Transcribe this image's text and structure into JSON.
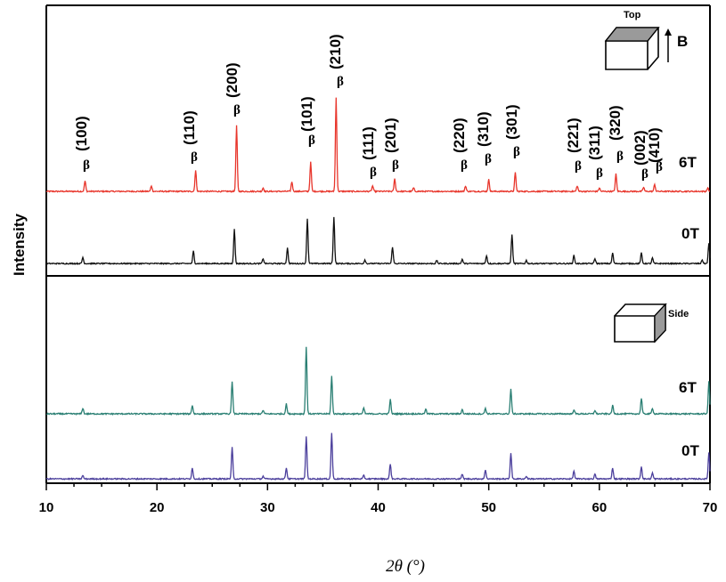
{
  "chart_data": {
    "type": "line",
    "xlabel": "2θ (°)",
    "ylabel": "Intensity",
    "xlim": [
      10,
      70
    ],
    "xticks": [
      10,
      20,
      30,
      40,
      50,
      60,
      70
    ],
    "grid": false,
    "panels": [
      {
        "name": "top",
        "inset_labels": [
          "Top",
          "B"
        ],
        "series": [
          {
            "name": "6T",
            "color": "#e8362c",
            "peaks": [
              {
                "x": 13.5,
                "y": 0.15
              },
              {
                "x": 19.5,
                "y": 0.08
              },
              {
                "x": 23.5,
                "y": 0.3
              },
              {
                "x": 27.2,
                "y": 0.95
              },
              {
                "x": 29.6,
                "y": 0.05
              },
              {
                "x": 32.2,
                "y": 0.14
              },
              {
                "x": 33.9,
                "y": 0.42
              },
              {
                "x": 36.2,
                "y": 1.35
              },
              {
                "x": 39.5,
                "y": 0.08
              },
              {
                "x": 41.5,
                "y": 0.18
              },
              {
                "x": 43.2,
                "y": 0.05
              },
              {
                "x": 47.9,
                "y": 0.08
              },
              {
                "x": 50.0,
                "y": 0.17
              },
              {
                "x": 52.4,
                "y": 0.27
              },
              {
                "x": 58.0,
                "y": 0.08
              },
              {
                "x": 60.0,
                "y": 0.05
              },
              {
                "x": 61.5,
                "y": 0.25
              },
              {
                "x": 64.0,
                "y": 0.06
              },
              {
                "x": 65.0,
                "y": 0.1
              },
              {
                "x": 69.8,
                "y": 0.05
              }
            ]
          },
          {
            "name": "0T",
            "color": "#111111",
            "peaks": [
              {
                "x": 13.3,
                "y": 0.1
              },
              {
                "x": 23.3,
                "y": 0.2
              },
              {
                "x": 27.0,
                "y": 0.55
              },
              {
                "x": 29.6,
                "y": 0.08
              },
              {
                "x": 31.8,
                "y": 0.25
              },
              {
                "x": 33.6,
                "y": 0.72
              },
              {
                "x": 36.0,
                "y": 0.75
              },
              {
                "x": 38.8,
                "y": 0.06
              },
              {
                "x": 41.3,
                "y": 0.27
              },
              {
                "x": 45.3,
                "y": 0.05
              },
              {
                "x": 47.6,
                "y": 0.07
              },
              {
                "x": 49.8,
                "y": 0.13
              },
              {
                "x": 52.1,
                "y": 0.47
              },
              {
                "x": 53.4,
                "y": 0.05
              },
              {
                "x": 57.7,
                "y": 0.13
              },
              {
                "x": 59.6,
                "y": 0.08
              },
              {
                "x": 61.2,
                "y": 0.17
              },
              {
                "x": 63.8,
                "y": 0.17
              },
              {
                "x": 64.8,
                "y": 0.09
              },
              {
                "x": 69.3,
                "y": 0.06
              },
              {
                "x": 69.9,
                "y": 0.32
              }
            ]
          }
        ],
        "peak_labels": [
          {
            "hkl": "(100)",
            "x": 13.5
          },
          {
            "hkl": "(110)",
            "x": 23.5
          },
          {
            "hkl": "(200)",
            "x": 27.2
          },
          {
            "hkl": "(101)",
            "x": 33.9
          },
          {
            "hkl": "(210)",
            "x": 36.2
          },
          {
            "hkl": "(111)",
            "x": 39.5
          },
          {
            "hkl": "(201)",
            "x": 41.5
          },
          {
            "hkl": "(220)",
            "x": 47.9
          },
          {
            "hkl": "(310)",
            "x": 50.0
          },
          {
            "hkl": "(301)",
            "x": 52.4
          },
          {
            "hkl": "(221)",
            "x": 58.0
          },
          {
            "hkl": "(311)",
            "x": 60.0
          },
          {
            "hkl": "(320)",
            "x": 61.5
          },
          {
            "hkl": "(002)",
            "x": 64.0
          },
          {
            "hkl": "(410)",
            "x": 65.0
          }
        ],
        "phase_symbol": "β"
      },
      {
        "name": "bottom",
        "inset_labels": [
          "Side"
        ],
        "series": [
          {
            "name": "6T",
            "color": "#2a7f73",
            "peaks": [
              {
                "x": 13.3,
                "y": 0.08
              },
              {
                "x": 23.2,
                "y": 0.12
              },
              {
                "x": 26.8,
                "y": 0.45
              },
              {
                "x": 29.6,
                "y": 0.05
              },
              {
                "x": 31.7,
                "y": 0.14
              },
              {
                "x": 33.5,
                "y": 0.95
              },
              {
                "x": 35.8,
                "y": 0.53
              },
              {
                "x": 38.7,
                "y": 0.08
              },
              {
                "x": 41.1,
                "y": 0.2
              },
              {
                "x": 44.3,
                "y": 0.07
              },
              {
                "x": 47.6,
                "y": 0.06
              },
              {
                "x": 49.7,
                "y": 0.08
              },
              {
                "x": 52.0,
                "y": 0.35
              },
              {
                "x": 57.7,
                "y": 0.06
              },
              {
                "x": 59.6,
                "y": 0.05
              },
              {
                "x": 61.2,
                "y": 0.12
              },
              {
                "x": 63.8,
                "y": 0.22
              },
              {
                "x": 64.8,
                "y": 0.08
              },
              {
                "x": 69.9,
                "y": 0.45
              }
            ]
          },
          {
            "name": "0T",
            "color": "#4b3f9c",
            "peaks": [
              {
                "x": 13.3,
                "y": 0.05
              },
              {
                "x": 23.2,
                "y": 0.17
              },
              {
                "x": 26.8,
                "y": 0.48
              },
              {
                "x": 29.6,
                "y": 0.04
              },
              {
                "x": 31.7,
                "y": 0.17
              },
              {
                "x": 33.5,
                "y": 0.65
              },
              {
                "x": 35.8,
                "y": 0.7
              },
              {
                "x": 38.7,
                "y": 0.05
              },
              {
                "x": 41.1,
                "y": 0.23
              },
              {
                "x": 47.6,
                "y": 0.07
              },
              {
                "x": 49.7,
                "y": 0.14
              },
              {
                "x": 52.0,
                "y": 0.4
              },
              {
                "x": 53.4,
                "y": 0.04
              },
              {
                "x": 57.7,
                "y": 0.12
              },
              {
                "x": 59.6,
                "y": 0.07
              },
              {
                "x": 61.2,
                "y": 0.17
              },
              {
                "x": 63.8,
                "y": 0.19
              },
              {
                "x": 64.8,
                "y": 0.09
              },
              {
                "x": 69.9,
                "y": 0.4
              }
            ]
          }
        ]
      }
    ]
  }
}
